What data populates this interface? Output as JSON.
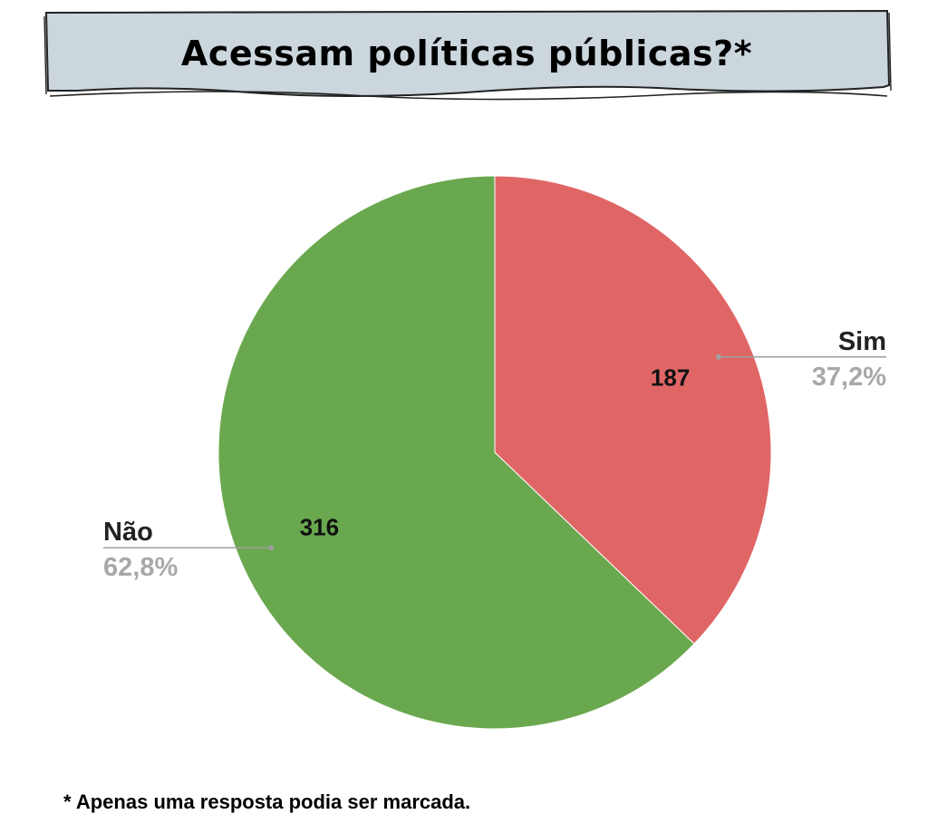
{
  "header": {
    "title": "Acessam políticas públicas?*"
  },
  "colors": {
    "banner_fill": "#cbd6dd",
    "banner_stroke": "#222222",
    "sim": "#e06666",
    "nao": "#6aa84f"
  },
  "chart_data": {
    "type": "pie",
    "title": "Acessam políticas públicas?*",
    "start": "12 o'clock, clockwise",
    "slices": [
      {
        "label": "Sim",
        "value": 187,
        "percent": "37,2%",
        "color": "#e06666"
      },
      {
        "label": "Não",
        "value": 316,
        "percent": "62,8%",
        "color": "#6aa84f"
      }
    ]
  },
  "footnote": "* Apenas uma resposta podia ser marcada."
}
